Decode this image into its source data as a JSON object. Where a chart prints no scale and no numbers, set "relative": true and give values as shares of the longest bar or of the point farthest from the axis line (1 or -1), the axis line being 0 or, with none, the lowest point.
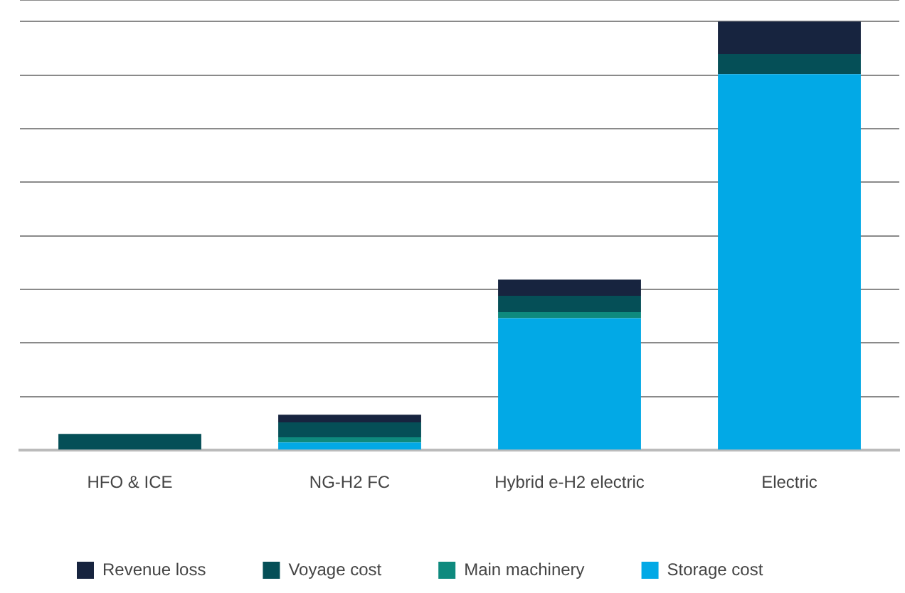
{
  "chart_data": {
    "type": "bar",
    "stacked": true,
    "relative": true,
    "grid": "y",
    "legend": "bottom left",
    "categories": [
      "HFO & ICE",
      "NG-H2 FC",
      "Hybrid e-H2 electric",
      "Electric"
    ],
    "series": [
      {
        "name": "Storage cost",
        "color": "#02a9e6",
        "values": [
          0,
          0.018,
          0.308,
          0.877
        ]
      },
      {
        "name": "Main machinery",
        "color": "#0e8a7e",
        "values": [
          0,
          0.012,
          0.014,
          0
        ]
      },
      {
        "name": "Voyage cost",
        "color": "#054f57",
        "values": [
          0.038,
          0.035,
          0.038,
          0.047
        ]
      },
      {
        "name": "Revenue loss",
        "color": "#17243f",
        "values": [
          0,
          0.018,
          0.038,
          0.076
        ]
      }
    ]
  }
}
